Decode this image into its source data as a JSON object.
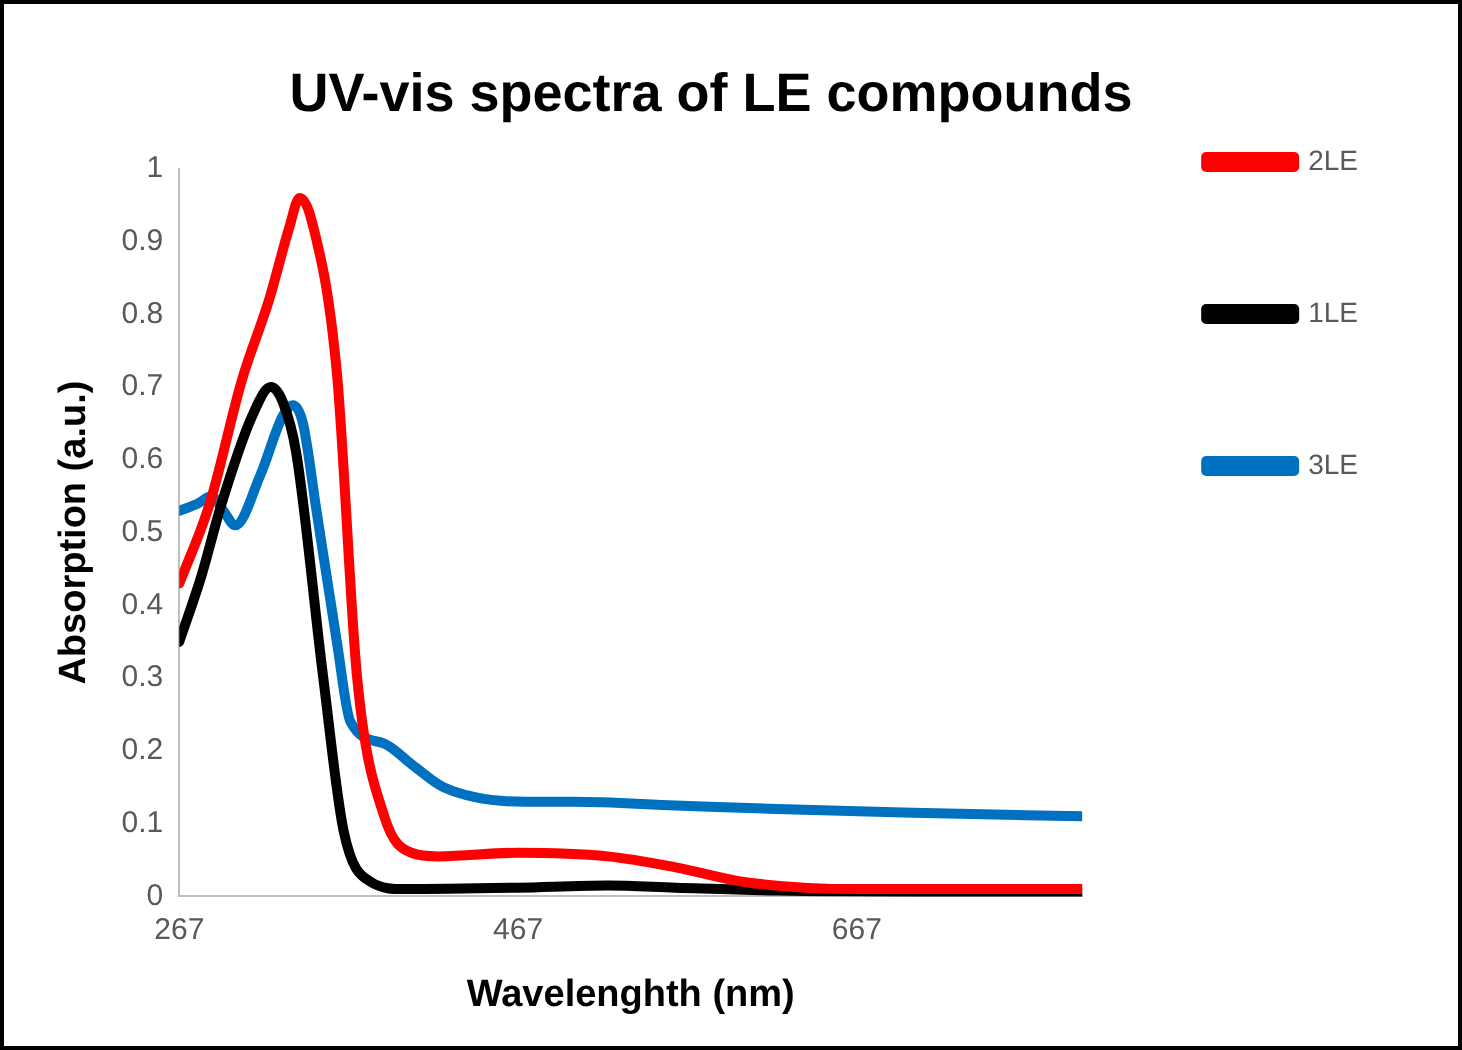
{
  "chart_data": {
    "type": "line",
    "title": "UV-vis spectra of LE compounds",
    "xlabel": "Wavelenghth (nm)",
    "ylabel": "Absorption (a.u.)",
    "xlim": [
      267,
      800
    ],
    "xticks": [
      267,
      467,
      667
    ],
    "ylim": [
      0,
      1
    ],
    "yticks": [
      0,
      0.1,
      0.2,
      0.3,
      0.4,
      0.5,
      0.6,
      0.7,
      0.8,
      0.9,
      1
    ],
    "grid": false,
    "legend": "right",
    "marker": "none",
    "line_style": "solid",
    "series": [
      {
        "name": "2LE",
        "color": "#ff0000",
        "x": [
          267,
          285,
          304,
          320,
          332,
          338,
          345,
          360,
          372,
          388,
          404,
          420,
          467,
          520,
          560,
          600,
          667,
          800
        ],
        "values": [
          0.43,
          0.54,
          0.71,
          0.82,
          0.92,
          0.96,
          0.93,
          0.72,
          0.3,
          0.11,
          0.06,
          0.055,
          0.06,
          0.055,
          0.04,
          0.02,
          0.01,
          0.01
        ]
      },
      {
        "name": "1LE",
        "color": "#000000",
        "x": [
          267,
          280,
          292,
          310,
          321,
          328,
          336,
          352,
          364,
          380,
          400,
          467,
          520,
          560,
          620,
          800
        ],
        "values": [
          0.35,
          0.44,
          0.54,
          0.66,
          0.7,
          0.68,
          0.61,
          0.3,
          0.09,
          0.02,
          0.01,
          0.012,
          0.015,
          0.012,
          0.008,
          0.005
        ]
      },
      {
        "name": "3LE",
        "color": "#0070c0",
        "x": [
          267,
          278,
          286,
          293,
          300,
          315,
          328,
          334,
          340,
          348,
          360,
          368,
          388,
          405,
          423,
          471,
          500,
          560,
          620,
          700,
          800
        ],
        "values": [
          0.53,
          0.54,
          0.55,
          0.53,
          0.51,
          0.58,
          0.66,
          0.675,
          0.65,
          0.53,
          0.35,
          0.24,
          0.21,
          0.18,
          0.15,
          0.13,
          0.13,
          0.125,
          0.12,
          0.115,
          0.11
        ]
      }
    ]
  }
}
